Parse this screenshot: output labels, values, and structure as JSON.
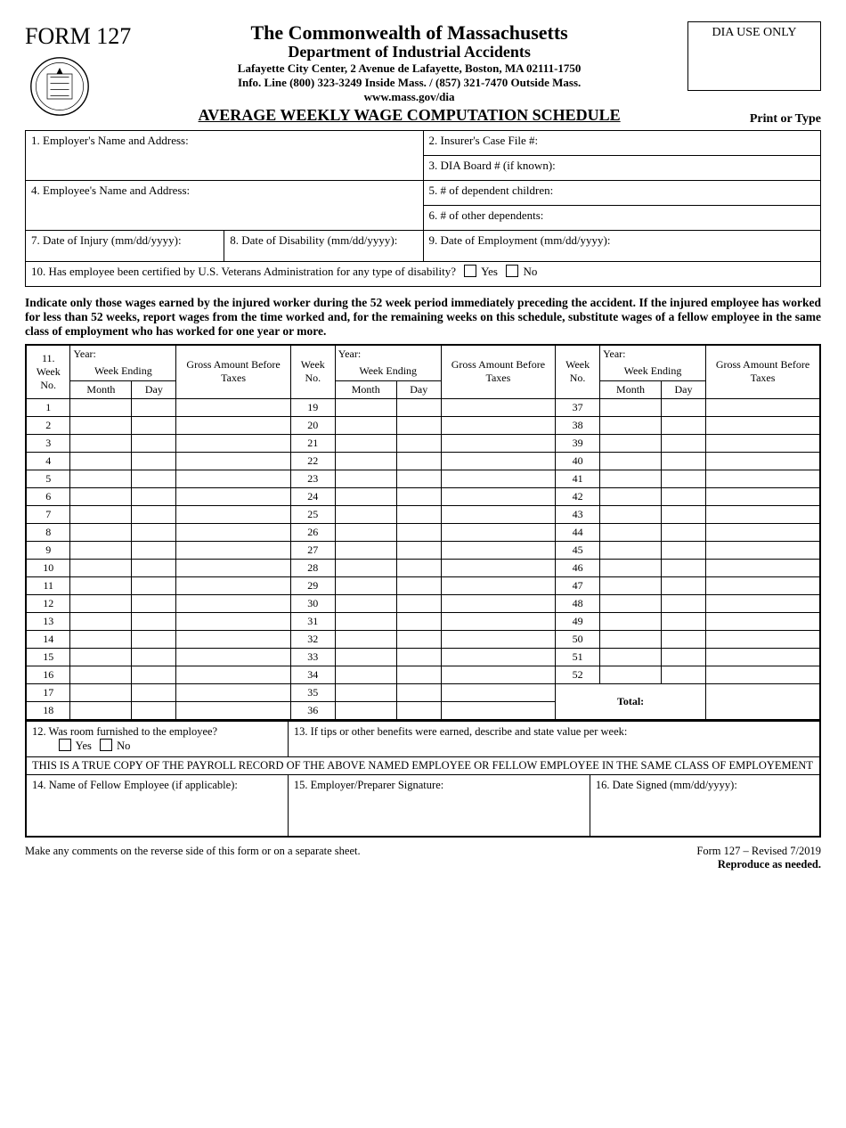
{
  "form_number": "FORM 127",
  "dia_box": "DIA USE ONLY",
  "header": {
    "title": "The Commonwealth of Massachusetts",
    "dept": "Department of Industrial Accidents",
    "addr": "Lafayette City Center, 2 Avenue de Lafayette, Boston, MA 02111-1750",
    "phone": "Info. Line (800) 323-3249 Inside Mass.  /  (857) 321-7470 Outside Mass.",
    "url": "www.mass.gov/dia",
    "schedule": "AVERAGE WEEKLY WAGE COMPUTATION SCHEDULE",
    "print_type": "Print or Type"
  },
  "info": {
    "f1": "1. Employer's Name and Address:",
    "f2": "2. Insurer's Case File #:",
    "f3": "3. DIA Board # (if known):",
    "f4": "4. Employee's Name and Address:",
    "f5": "5. # of dependent children:",
    "f6": "6. # of other dependents:",
    "f7": "7. Date of Injury (mm/dd/yyyy):",
    "f8": "8. Date of Disability (mm/dd/yyyy):",
    "f9": "9. Date of Employment (mm/dd/yyyy):",
    "f10": "10. Has employee been certified by U.S. Veterans Administration for any type of disability?",
    "yes": "Yes",
    "no": "No"
  },
  "instructions": "Indicate only those wages earned by the injured worker during the 52 week period immediately preceding the accident.  If the injured employee has worked for less than 52 weeks, report wages from the time worked and, for the remaining weeks on this schedule, substitute wages of a fellow employee in the same class of employment  who has worked for one year or more.",
  "wage_headers": {
    "col11": "11.",
    "weekno": "Week No.",
    "year": "Year:",
    "week_ending": "Week Ending",
    "month": "Month",
    "day": "Day",
    "gross": "Gross Amount Before Taxes",
    "total": "Total:"
  },
  "weeks": {
    "colA": [
      1,
      2,
      3,
      4,
      5,
      6,
      7,
      8,
      9,
      10,
      11,
      12,
      13,
      14,
      15,
      16,
      17,
      18
    ],
    "colB": [
      19,
      20,
      21,
      22,
      23,
      24,
      25,
      26,
      27,
      28,
      29,
      30,
      31,
      32,
      33,
      34,
      35,
      36
    ],
    "colC": [
      37,
      38,
      39,
      40,
      41,
      42,
      43,
      44,
      45,
      46,
      47,
      48,
      49,
      50,
      51,
      52
    ]
  },
  "q12": "12. Was room furnished to the employee?",
  "q13": "13. If tips or other benefits were earned, describe and state value per week:",
  "disclaimer": "THIS IS A TRUE COPY OF THE PAYROLL RECORD OF THE ABOVE NAMED EMPLOYEE OR FELLOW EMPLOYEE IN THE SAME CLASS OF EMPLOYEMENT",
  "q14": "14. Name of Fellow Employee (if applicable):",
  "q15": "15. Employer/Preparer Signature:",
  "q16": "16. Date Signed (mm/dd/yyyy):",
  "footer_left": "Make any comments on the reverse side of this form or on a separate sheet.",
  "footer_right1": "Form 127 – Revised 7/2019",
  "footer_right2": "Reproduce as needed."
}
